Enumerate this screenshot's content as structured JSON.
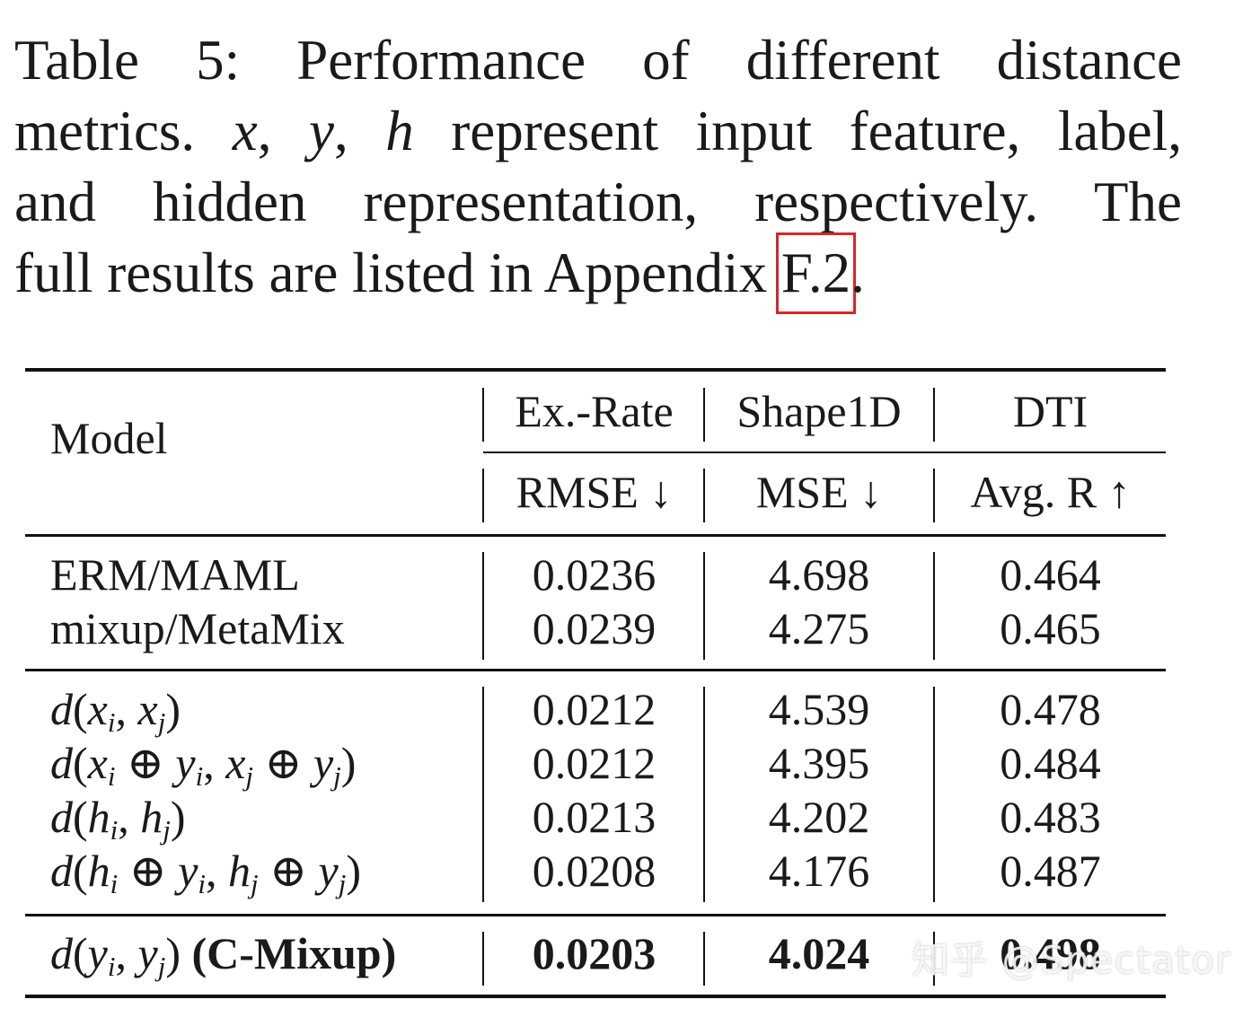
{
  "caption": {
    "line1": "Table 5: Performance of different distance",
    "line2_pre": "metrics.",
    "var_x": "x",
    "var_y": "y",
    "var_h": "h",
    "line2_post": "represent input feature, label,",
    "line3": "and hidden representation, respectively. The",
    "line4_pre": "full results are listed in Appendix",
    "appendix_ref": "F.2",
    "line4_post": "."
  },
  "table": {
    "header": {
      "model": "Model",
      "datasets": [
        "Ex.-Rate",
        "Shape1D",
        "DTI"
      ],
      "metrics": [
        "RMSE ↓",
        "MSE ↓",
        "Avg. R ↑"
      ]
    },
    "group1": [
      {
        "model": "ERM/MAML",
        "values": [
          "0.0236",
          "4.698",
          "0.464"
        ]
      },
      {
        "model": "mixup/MetaMix",
        "values": [
          "0.0239",
          "4.275",
          "0.465"
        ]
      }
    ],
    "group2": [
      {
        "model": "d(x_i, x_j)",
        "values": [
          "0.0212",
          "4.539",
          "0.478"
        ]
      },
      {
        "model": "d(x_i ⊕ y_i, x_j ⊕ y_j)",
        "values": [
          "0.0212",
          "4.395",
          "0.484"
        ]
      },
      {
        "model": "d(h_i, h_j)",
        "values": [
          "0.0213",
          "4.202",
          "0.483"
        ]
      },
      {
        "model": "d(h_i ⊕ y_i, h_j ⊕ y_j)",
        "values": [
          "0.0208",
          "4.176",
          "0.487"
        ]
      }
    ],
    "final": {
      "model": "d(y_i, y_j)",
      "label": "(C-Mixup)",
      "values": [
        "0.0203",
        "4.024",
        "0.498"
      ]
    }
  },
  "watermark": "知乎 @Spectator"
}
